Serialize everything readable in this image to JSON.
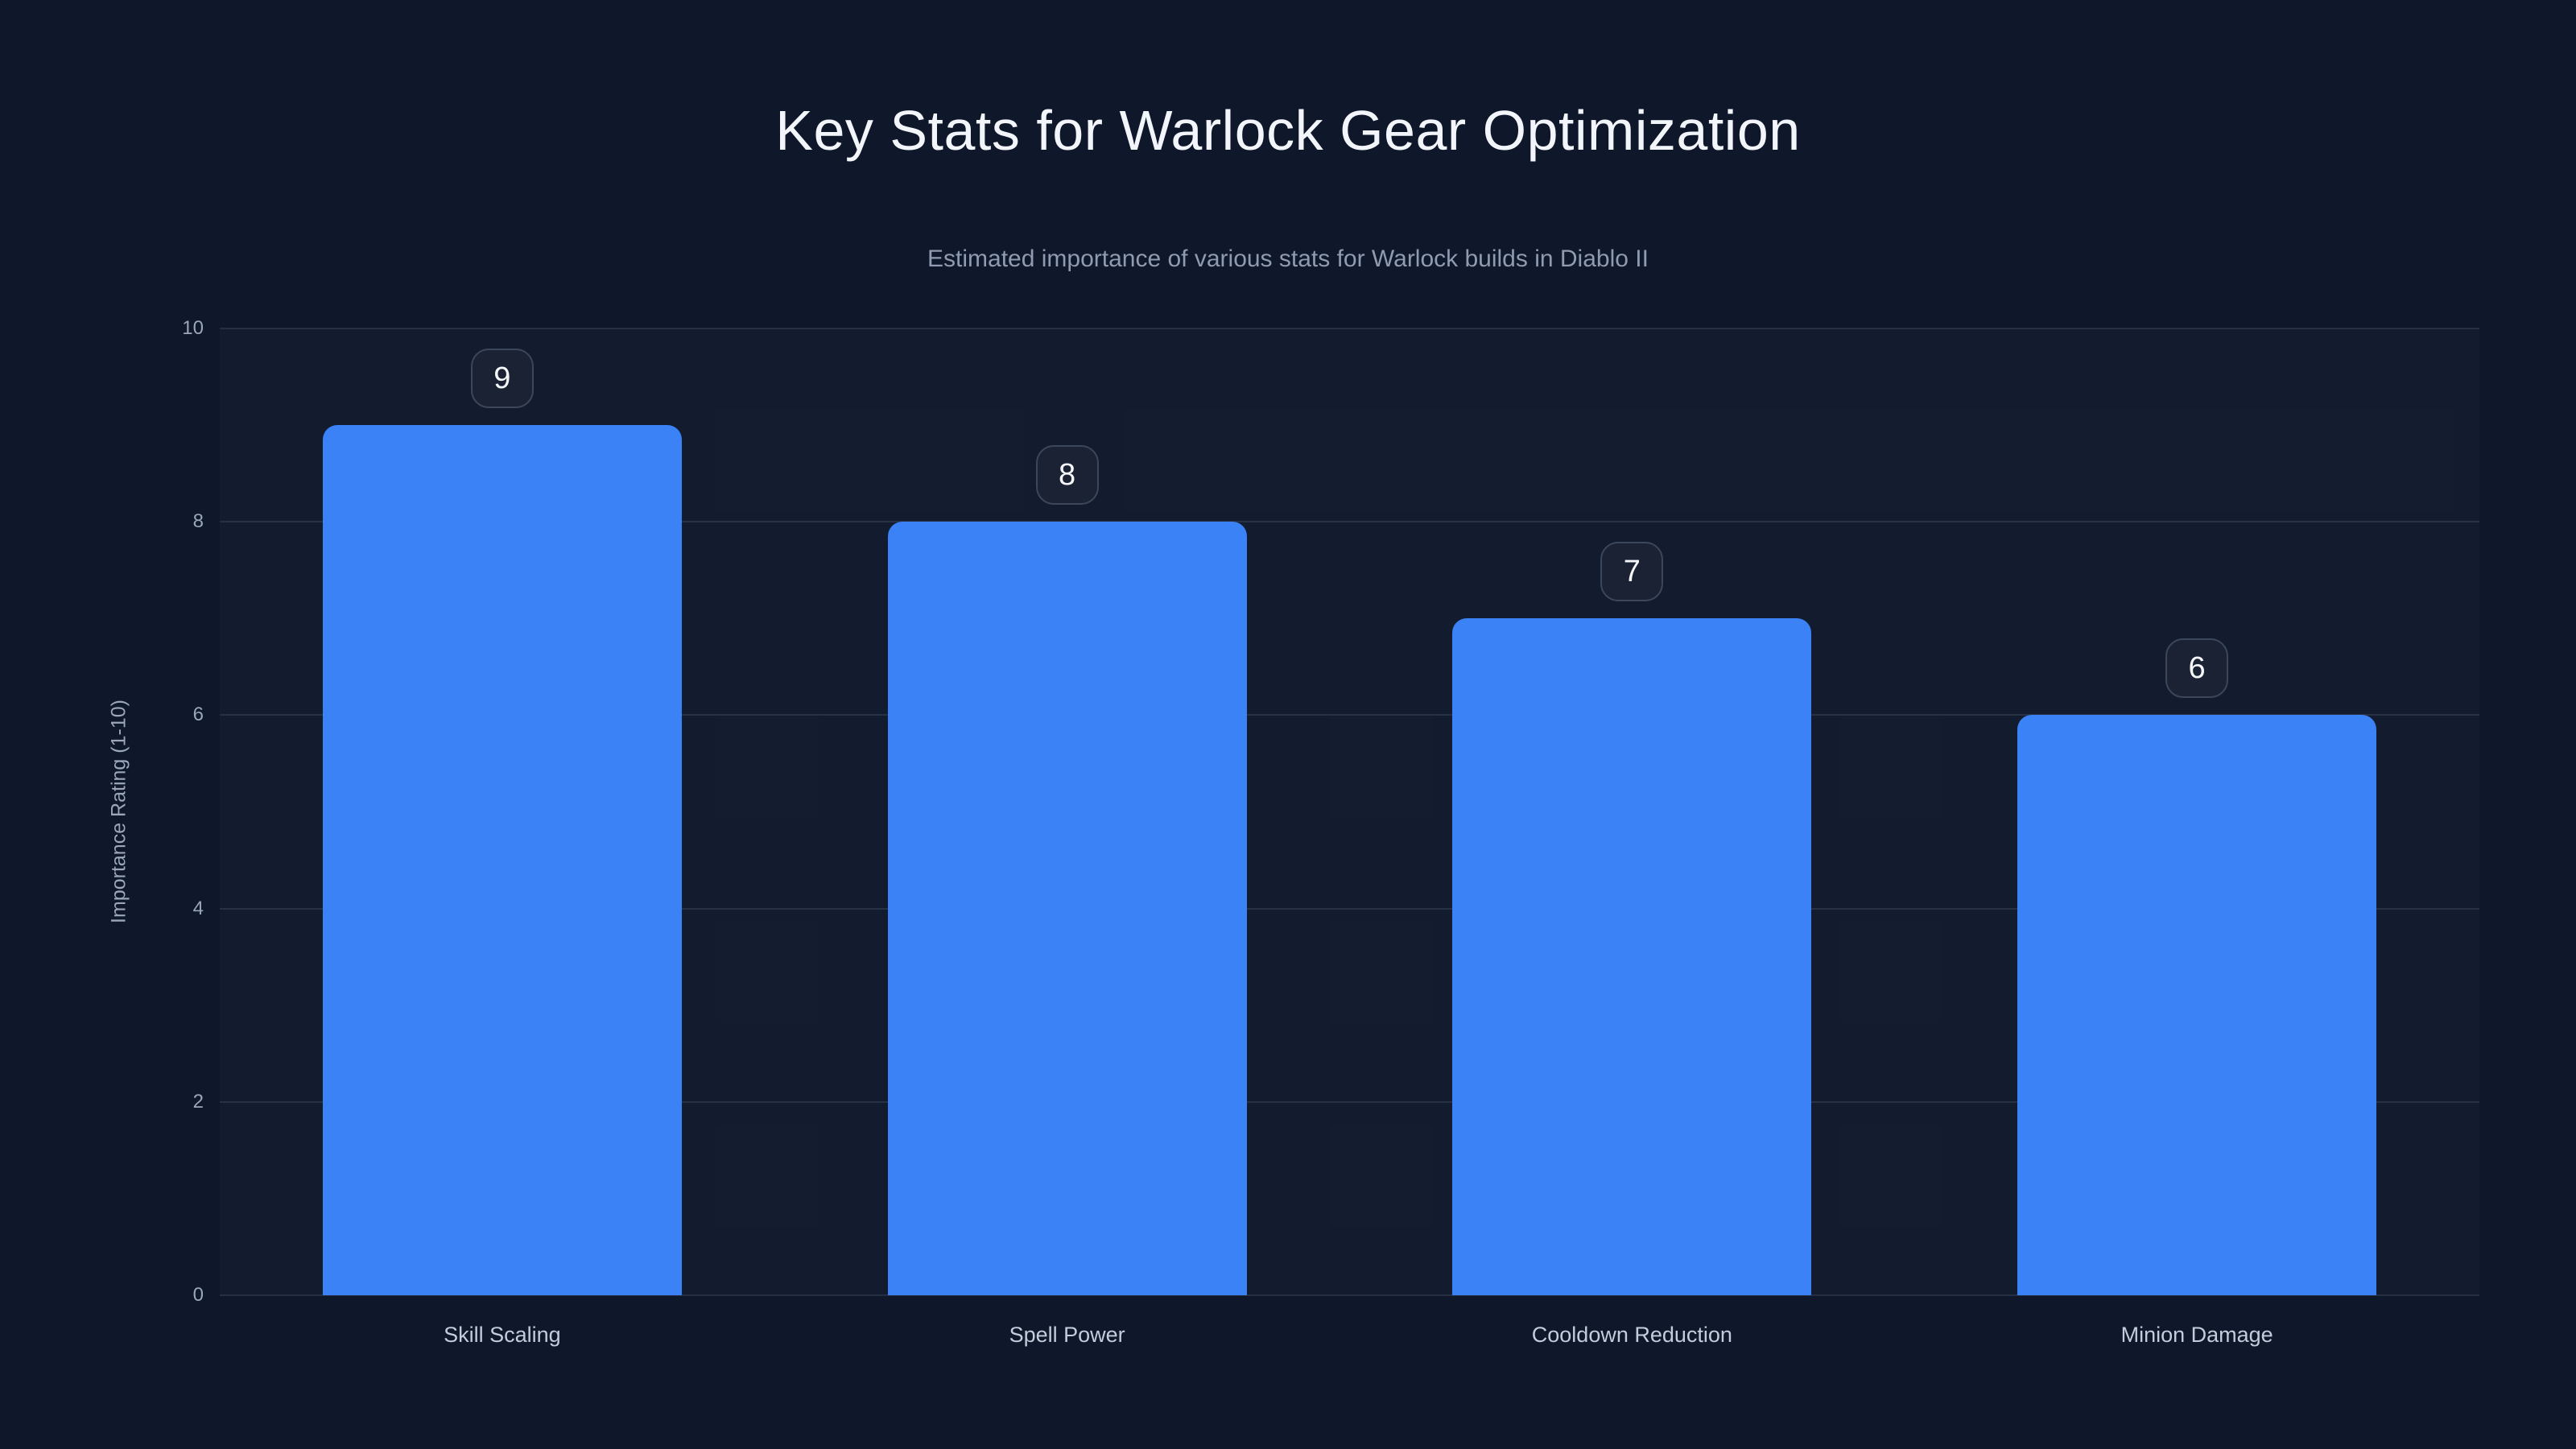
{
  "header": {
    "title": "Key Stats for Warlock Gear Optimization",
    "subtitle": "Estimated importance of various stats for Warlock builds in Diablo II"
  },
  "chart_data": {
    "type": "bar",
    "title": "Key Stats for Warlock Gear Optimization",
    "subtitle": "Estimated importance of various stats for Warlock builds in Diablo II",
    "categories": [
      "Skill Scaling",
      "Spell Power",
      "Cooldown Reduction",
      "Minion Damage"
    ],
    "values": [
      9,
      8,
      7,
      6
    ],
    "value_labels": [
      "9",
      "8",
      "7",
      "6"
    ],
    "xlabel": "",
    "ylabel": "Importance Rating (1-10)",
    "ylim": [
      0,
      10
    ],
    "yticks": [
      0,
      2,
      4,
      6,
      8,
      10
    ],
    "grid": true,
    "legend": false,
    "bar_color": "#3b82f6",
    "background_color": "#0f172a",
    "title_color": "#f2f5fa",
    "subtitle_color": "#8f9bb0",
    "tick_color": "#9aa6ba",
    "category_label_color": "#c3ccda",
    "gridline_color": "rgba(148,163,184,0.16)"
  }
}
